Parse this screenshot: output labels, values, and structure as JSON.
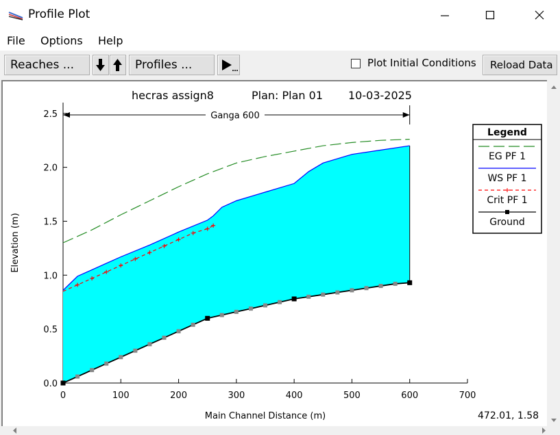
{
  "window": {
    "title": "Profile Plot"
  },
  "menu": {
    "items": [
      "File",
      "Options",
      "Help"
    ]
  },
  "toolbar": {
    "reaches_label": "Reaches ...",
    "profiles_label": "Profiles ...",
    "plot_initial_conditions_label": "Plot Initial Conditions",
    "plot_initial_conditions_checked": false,
    "reload_label": "Reload Data"
  },
  "status": {
    "cursor_readout": "472.01, 1.58"
  },
  "chart_data": {
    "type": "line",
    "title_parts": [
      "hecras assign8",
      "Plan: Plan 01",
      "10-03-2025"
    ],
    "reach_label": "Ganga 600",
    "reach_range": [
      0,
      600
    ],
    "xlabel": "Main Channel Distance (m)",
    "ylabel": "Elevation (m)",
    "xlim": [
      0,
      700
    ],
    "ylim": [
      0,
      2.6
    ],
    "xticks": [
      0,
      100,
      200,
      300,
      400,
      500,
      600,
      700
    ],
    "yticks": [
      0.0,
      0.5,
      1.0,
      1.5,
      2.0,
      2.5
    ],
    "ytick_labels": [
      "0.0",
      "0.5",
      "1.0",
      "1.5",
      "2.0",
      "2.5"
    ],
    "legend": {
      "title": "Legend",
      "entries": [
        "EG  PF 1",
        "WS  PF 1",
        "Crit  PF 1",
        "Ground"
      ],
      "placement": "top-right outside"
    },
    "series": [
      {
        "name": "EG  PF 1",
        "color": "#228B22",
        "style": "long-dash",
        "x": [
          0,
          25,
          50,
          75,
          100,
          150,
          200,
          250,
          275,
          300,
          350,
          400,
          450,
          500,
          550,
          600
        ],
        "y": [
          1.3,
          1.36,
          1.42,
          1.49,
          1.56,
          1.69,
          1.82,
          1.94,
          1.99,
          2.04,
          2.1,
          2.15,
          2.2,
          2.23,
          2.25,
          2.26
        ]
      },
      {
        "name": "WS  PF 1",
        "color": "#0000ff",
        "style": "solid",
        "x": [
          0,
          25,
          50,
          75,
          100,
          150,
          200,
          250,
          260,
          275,
          300,
          350,
          400,
          425,
          450,
          500,
          550,
          600
        ],
        "y": [
          0.86,
          0.99,
          1.05,
          1.11,
          1.17,
          1.28,
          1.4,
          1.51,
          1.55,
          1.63,
          1.69,
          1.77,
          1.85,
          1.96,
          2.04,
          2.12,
          2.16,
          2.2
        ]
      },
      {
        "name": "Crit  PF 1",
        "color": "#ff0000",
        "style": "dashed-plus",
        "x": [
          0,
          25,
          50,
          75,
          100,
          125,
          150,
          175,
          200,
          225,
          250,
          260
        ],
        "y": [
          0.85,
          0.91,
          0.97,
          1.03,
          1.09,
          1.15,
          1.21,
          1.27,
          1.33,
          1.39,
          1.43,
          1.46
        ]
      },
      {
        "name": "Ground",
        "color": "#000000",
        "style": "solid-square",
        "x": [
          0,
          25,
          50,
          75,
          100,
          125,
          150,
          175,
          200,
          225,
          250,
          275,
          300,
          325,
          350,
          375,
          400,
          425,
          450,
          475,
          500,
          525,
          550,
          575,
          600
        ],
        "y": [
          0.0,
          0.06,
          0.12,
          0.18,
          0.24,
          0.3,
          0.36,
          0.42,
          0.48,
          0.54,
          0.6,
          0.63,
          0.66,
          0.69,
          0.72,
          0.75,
          0.78,
          0.8,
          0.82,
          0.84,
          0.86,
          0.88,
          0.9,
          0.92,
          0.93
        ],
        "major_x": [
          0,
          250,
          400,
          600
        ]
      }
    ],
    "fill": {
      "between": [
        "Ground",
        "WS  PF 1"
      ],
      "color": "#00ffff"
    }
  }
}
